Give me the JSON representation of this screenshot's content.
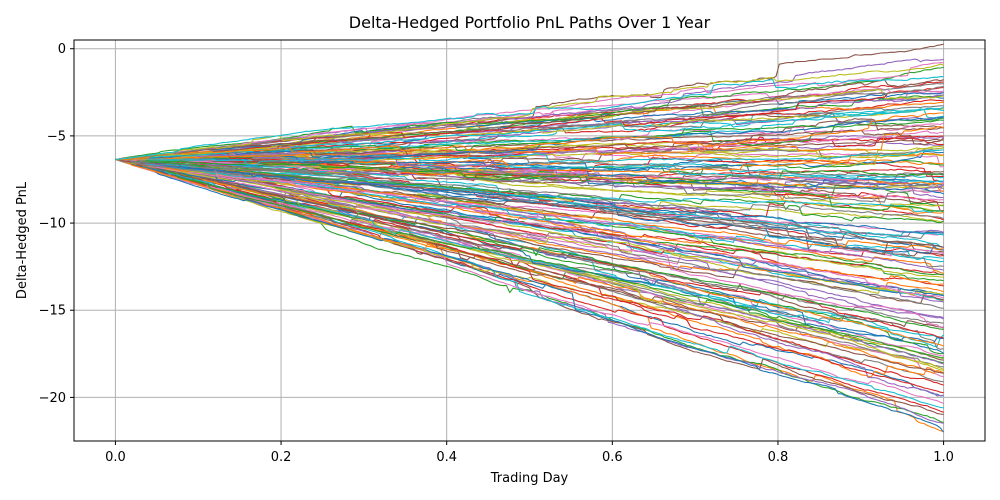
{
  "chart_data": {
    "type": "line",
    "title": "Delta-Hedged Portfolio PnL Paths Over 1 Year",
    "xlabel": "Trading Day",
    "ylabel": "Delta-Hedged PnL",
    "xlim": [
      -0.05,
      1.05
    ],
    "ylim": [
      -22.5,
      0.5
    ],
    "xticks": [
      0.0,
      0.2,
      0.4,
      0.6,
      0.8,
      1.0
    ],
    "xtick_labels": [
      "0.0",
      "0.2",
      "0.4",
      "0.6",
      "0.8",
      "1.0"
    ],
    "yticks": [
      0,
      -5,
      -10,
      -15,
      -20
    ],
    "ytick_labels": [
      "0",
      "−5",
      "−10",
      "−15",
      "−20"
    ],
    "grid": true,
    "legend": "none",
    "start_value": -6.35,
    "end_range": [
      -21.5,
      -0.7
    ],
    "num_paths_shown": 160,
    "palette": [
      "#1f77b4",
      "#ff7f0e",
      "#2ca02c",
      "#d62728",
      "#9467bd",
      "#8c564b",
      "#e377c2",
      "#7f7f7f",
      "#bcbd22",
      "#17becf"
    ]
  }
}
